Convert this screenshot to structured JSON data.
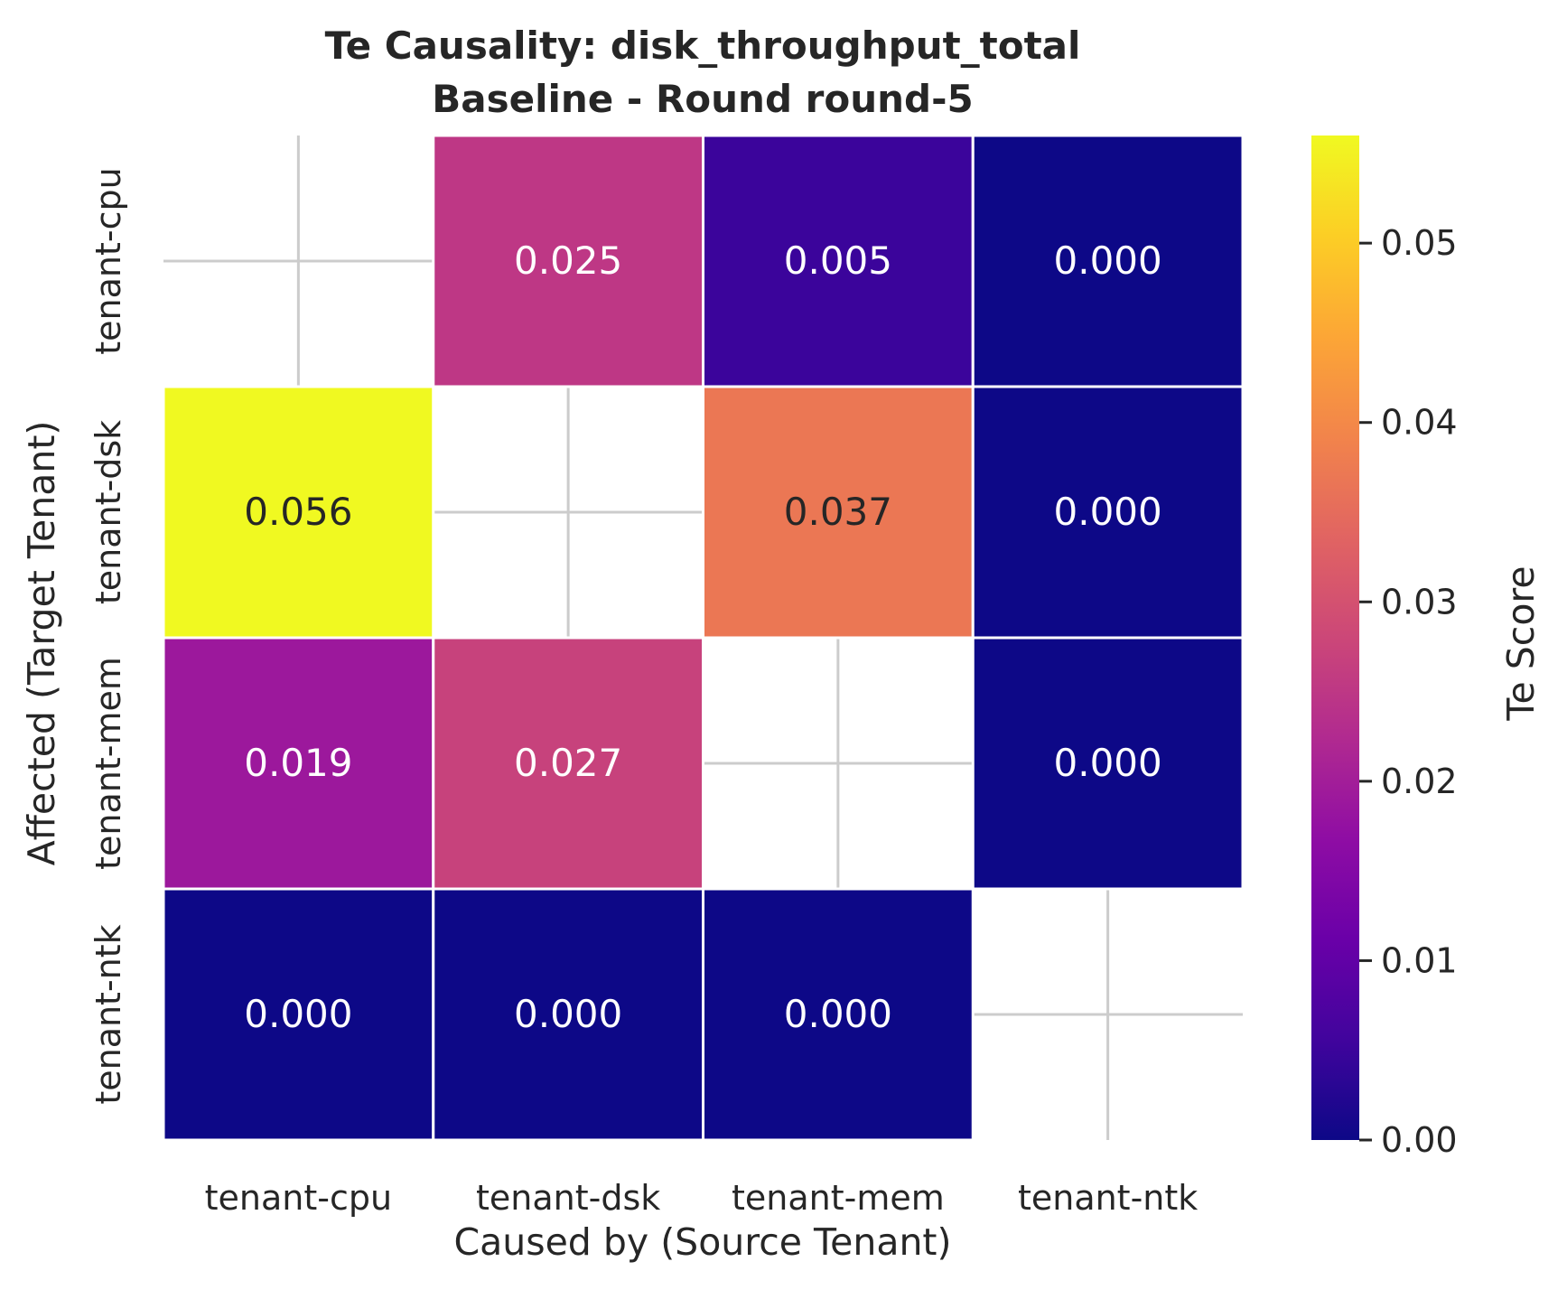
{
  "chart_data": {
    "type": "heatmap",
    "title_line1": "Te Causality: disk_throughput_total",
    "title_line2": "Baseline - Round round-5",
    "xlabel": "Caused by (Source Tenant)",
    "ylabel": "Affected (Target Tenant)",
    "x_categories": [
      "tenant-cpu",
      "tenant-dsk",
      "tenant-mem",
      "tenant-ntk"
    ],
    "y_categories": [
      "tenant-cpu",
      "tenant-dsk",
      "tenant-mem",
      "tenant-ntk"
    ],
    "values": [
      [
        null,
        0.025,
        0.005,
        0.0
      ],
      [
        0.056,
        null,
        0.037,
        0.0
      ],
      [
        0.019,
        0.027,
        null,
        0.0
      ],
      [
        0.0,
        0.0,
        0.0,
        null
      ]
    ],
    "value_labels": [
      [
        null,
        "0.025",
        "0.005",
        "0.000"
      ],
      [
        "0.056",
        null,
        "0.037",
        "0.000"
      ],
      [
        "0.019",
        "0.027",
        null,
        "0.000"
      ],
      [
        "0.000",
        "0.000",
        "0.000",
        null
      ]
    ],
    "colorscale": "plasma",
    "vmin": 0.0,
    "vmax": 0.056,
    "colorbar": {
      "label": "Te Score",
      "ticks": [
        0.0,
        0.01,
        0.02,
        0.03,
        0.04,
        0.05
      ],
      "tick_labels": [
        "0.00",
        "0.01",
        "0.02",
        "0.03",
        "0.04",
        "0.05"
      ]
    },
    "grid": true
  }
}
